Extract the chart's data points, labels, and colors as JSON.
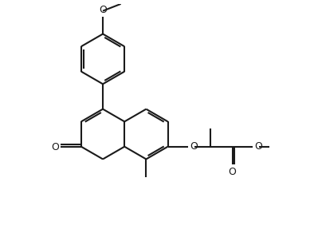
{
  "bg_color": "#ffffff",
  "line_color": "#1a1a1a",
  "lw": 1.5,
  "figsize": [
    3.94,
    3.12
  ],
  "dpi": 100,
  "xlim": [
    -2.2,
    6.8
  ],
  "ylim": [
    -1.5,
    8.2
  ]
}
